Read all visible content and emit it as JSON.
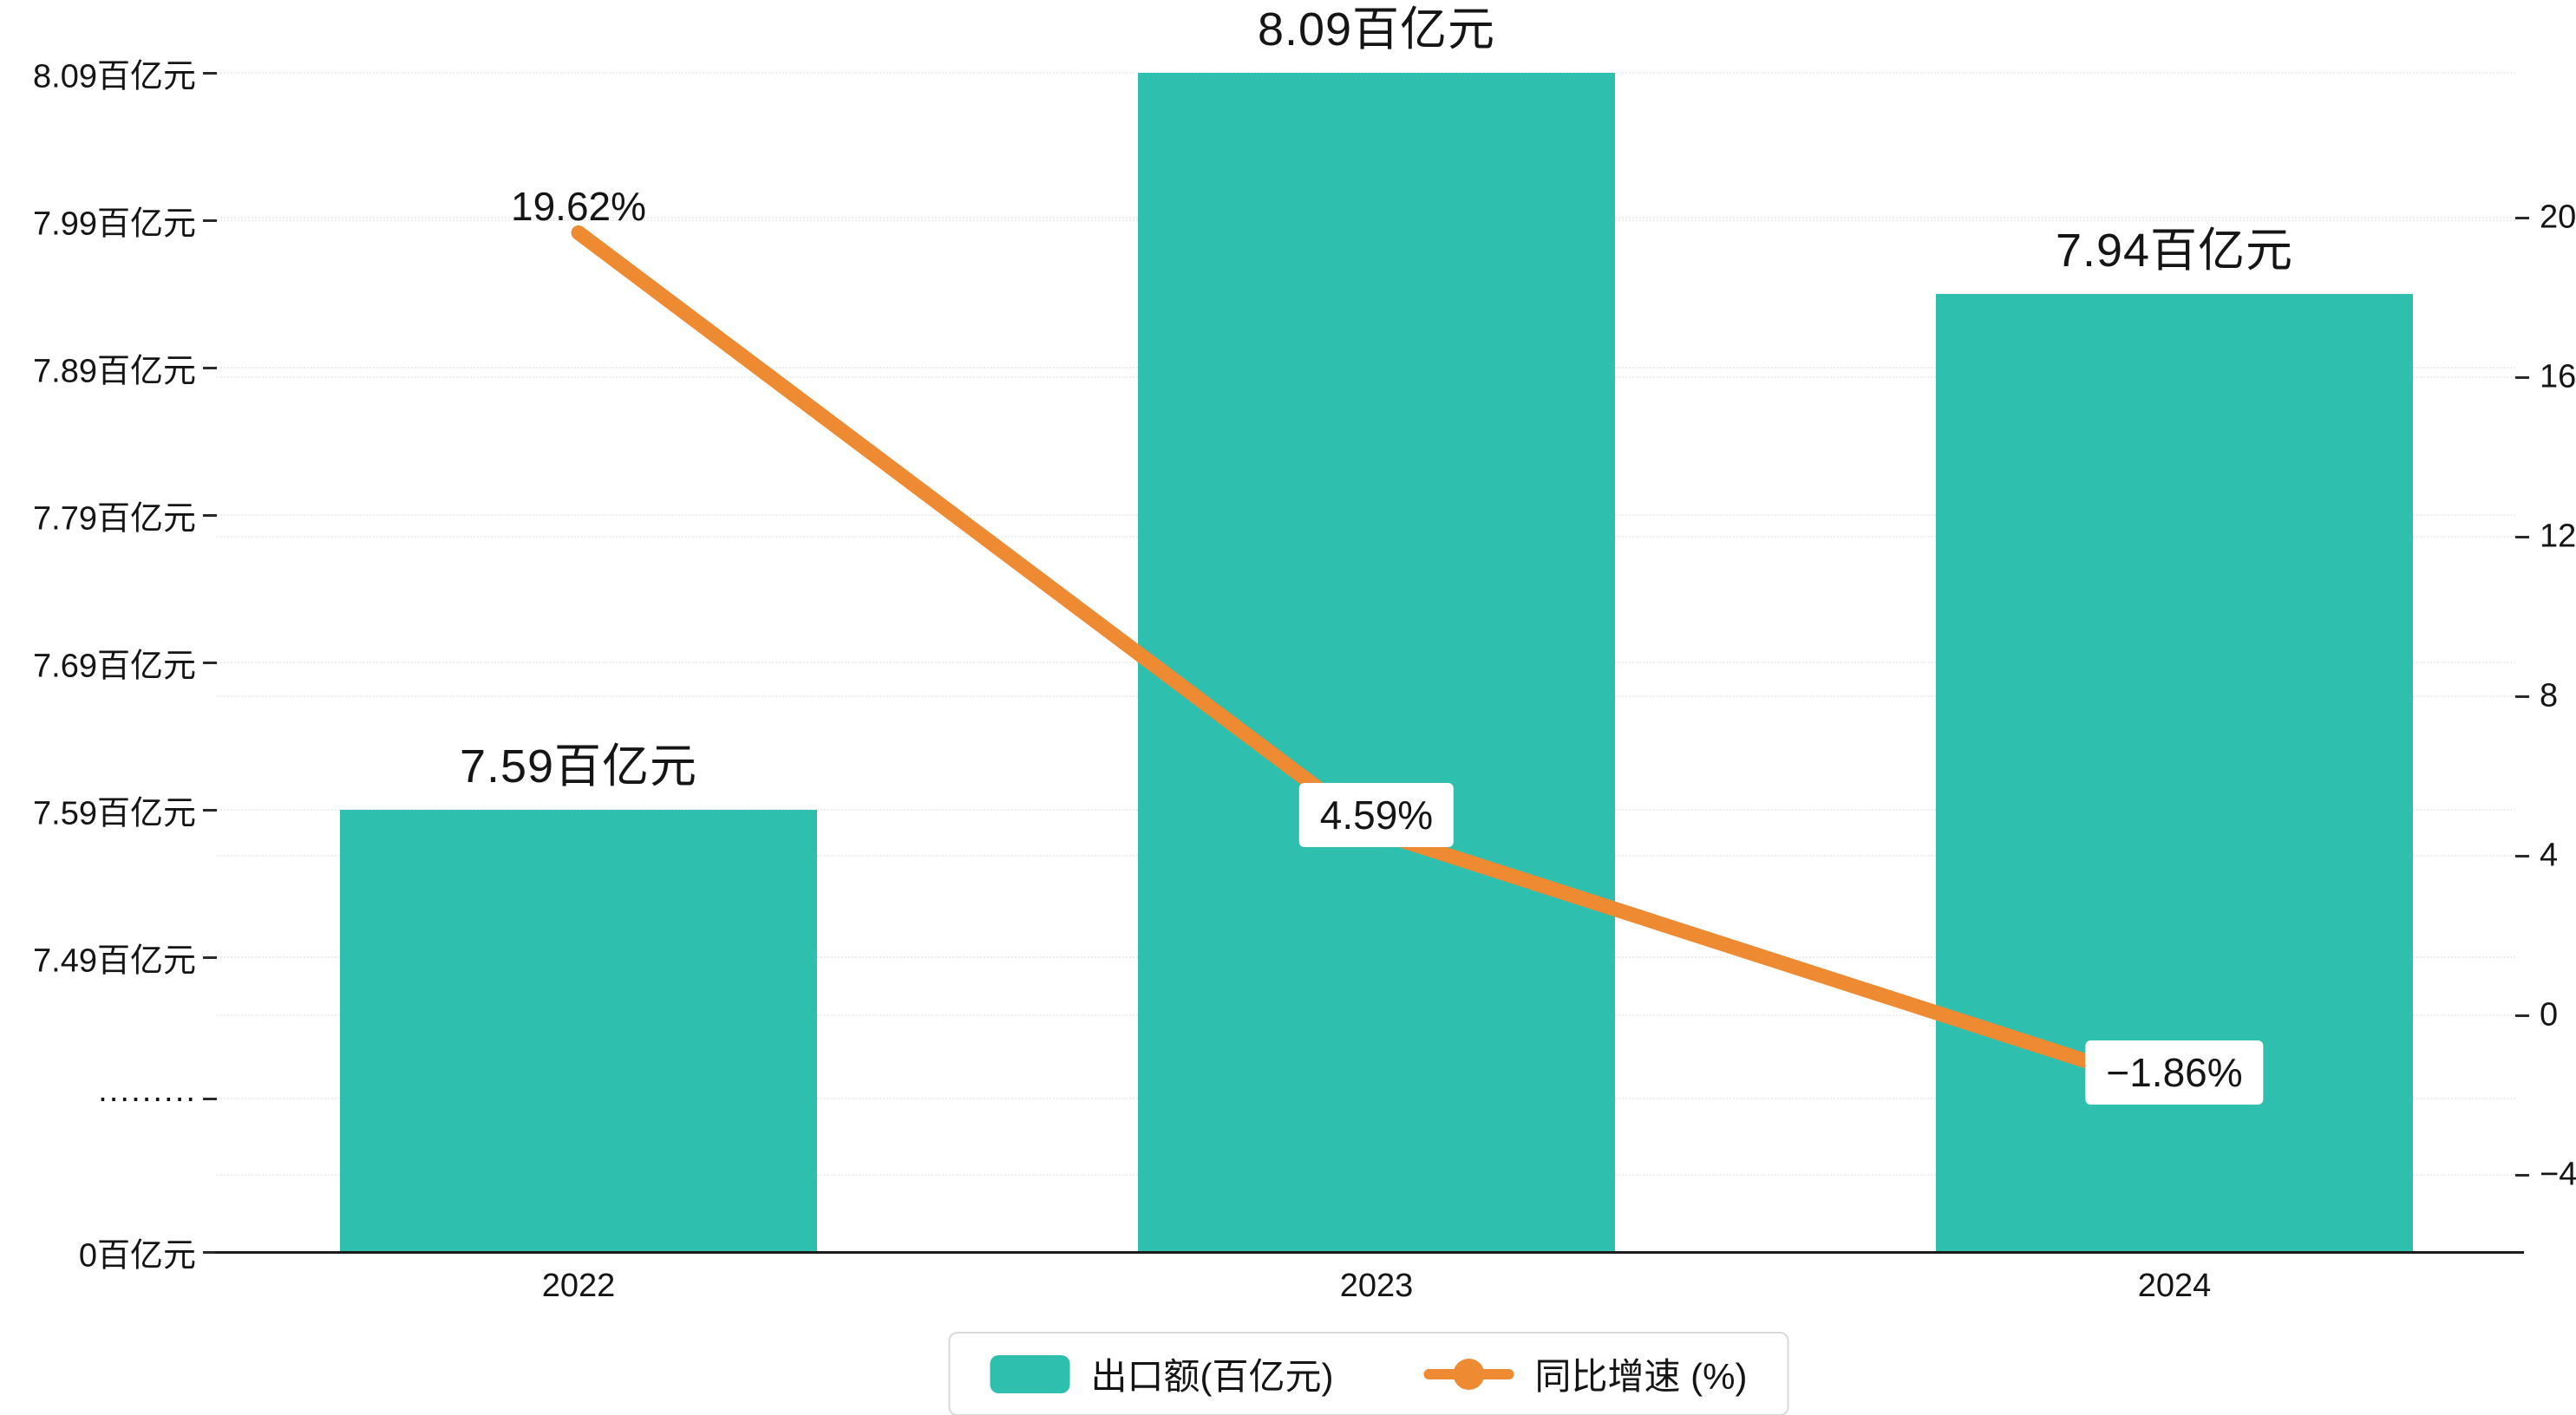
{
  "chart_data": {
    "type": "bar+line",
    "categories": [
      "2022",
      "2023",
      "2024"
    ],
    "series": [
      {
        "name": "出口额(百亿元)",
        "type": "bar",
        "axis": "left",
        "values": [
          7.59,
          8.09,
          7.94
        ],
        "labels": [
          "7.59百亿元",
          "8.09百亿元",
          "7.94百亿元"
        ],
        "color": "#2fbfaf"
      },
      {
        "name": "同比增速 (%)",
        "type": "line",
        "axis": "right",
        "values": [
          19.62,
          4.59,
          -1.86
        ],
        "labels": [
          "19.62%",
          "4.59%",
          "−1.86%"
        ],
        "color": "#ee8a31"
      }
    ],
    "left_axis": {
      "unit": "百亿元",
      "broken_axis": true,
      "tick_labels": [
        "8.09百亿元",
        "7.99百亿元",
        "7.89百亿元",
        "7.79百亿元",
        "7.69百亿元",
        "7.59百亿元",
        "7.49百亿元",
        "·········",
        "0百亿元"
      ]
    },
    "right_axis": {
      "tick_labels": [
        "20",
        "16",
        "12",
        "8",
        "4",
        "0",
        "−4"
      ],
      "tick_values": [
        20,
        16,
        12,
        8,
        4,
        0,
        -4
      ],
      "range": [
        -4,
        20
      ]
    },
    "legend": {
      "items": [
        "出口额(百亿元)",
        "同比增速 (%)"
      ],
      "position": "bottom-center"
    },
    "grid": "faint dotted horizontal lines",
    "title": ""
  },
  "colors": {
    "bar": "#2fbfaf",
    "line": "#ee8a31",
    "axis_text": "#151515",
    "gridline": "#ededed",
    "background": "#ffffff"
  }
}
